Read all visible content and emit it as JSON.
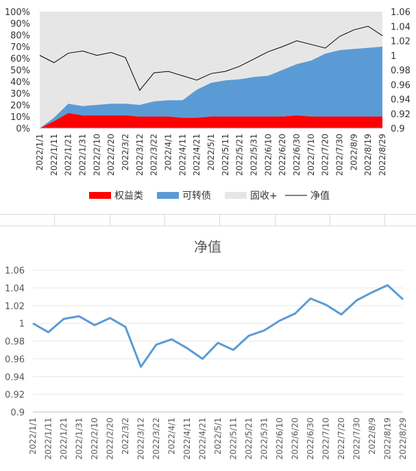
{
  "chart_data": [
    {
      "type": "area",
      "x_dates": [
        "2022/1/1",
        "2022/1/11",
        "2022/1/21",
        "2022/1/31",
        "2022/2/10",
        "2022/2/20",
        "2022/3/2",
        "2022/3/12",
        "2022/3/22",
        "2022/4/1",
        "2022/4/11",
        "2022/4/21",
        "2022/5/1",
        "2022/5/11",
        "2022/5/21",
        "2022/5/31",
        "2022/6/10",
        "2022/6/20",
        "2022/6/30",
        "2022/7/10",
        "2022/7/20",
        "2022/7/30",
        "2022/8/9",
        "2022/8/19",
        "2022/8/29"
      ],
      "y_left_ticks": [
        "0%",
        "10%",
        "20%",
        "30%",
        "40%",
        "50%",
        "60%",
        "70%",
        "80%",
        "90%",
        "100%"
      ],
      "y_right_ticks": [
        "0.9",
        "0.92",
        "0.94",
        "0.96",
        "0.98",
        "1",
        "1.02",
        "1.04",
        "1.06"
      ],
      "ylim_left": [
        0,
        100
      ],
      "ylim_right": [
        0.9,
        1.06
      ],
      "legend": [
        "权益类",
        "可转债",
        "固收+",
        "净值"
      ],
      "legend_position": "bottom",
      "colors": {
        "equity": "#ff0000",
        "convertible": "#5b9bd5",
        "fixed": "#e7e6e6",
        "nav": "#000000"
      },
      "series": [
        {
          "name": "权益类",
          "axis": "left",
          "values": [
            0,
            6,
            13,
            11,
            11,
            11,
            11,
            10,
            10,
            10,
            9,
            9,
            10,
            10,
            10,
            10,
            10,
            10,
            11,
            10,
            10,
            10,
            10,
            10,
            10
          ]
        },
        {
          "name": "可转债",
          "axis": "left",
          "values": [
            0,
            3,
            8,
            8,
            9,
            10,
            10,
            10,
            13,
            14,
            15,
            24,
            29,
            31,
            32,
            34,
            35,
            40,
            44,
            48,
            54,
            57,
            58,
            59,
            60
          ]
        },
        {
          "name": "固收+",
          "axis": "left",
          "values": [
            100,
            91,
            79,
            81,
            80,
            79,
            79,
            80,
            77,
            76,
            76,
            67,
            61,
            59,
            58,
            56,
            55,
            50,
            45,
            42,
            36,
            33,
            32,
            31,
            30
          ]
        },
        {
          "name": "净值",
          "axis": "right",
          "values": [
            1.0,
            0.99,
            1.003,
            1.006,
            1.0,
            1.004,
            0.997,
            0.952,
            0.976,
            0.978,
            0.972,
            0.966,
            0.975,
            0.978,
            0.985,
            0.995,
            1.005,
            1.012,
            1.02,
            1.015,
            1.01,
            1.026,
            1.035,
            1.04,
            1.027
          ]
        }
      ]
    },
    {
      "type": "line",
      "title": "净值",
      "x_dates": [
        "2022/1/1",
        "2022/1/11",
        "2022/1/21",
        "2022/1/31",
        "2022/2/10",
        "2022/2/20",
        "2022/3/2",
        "2022/3/12",
        "2022/3/22",
        "2022/4/1",
        "2022/4/11",
        "2022/4/21",
        "2022/5/1",
        "2022/5/11",
        "2022/5/21",
        "2022/5/31",
        "2022/6/10",
        "2022/6/20",
        "2022/6/30",
        "2022/7/10",
        "2022/7/20",
        "2022/7/30",
        "2022/8/9",
        "2022/8/19",
        "2022/8/29"
      ],
      "y_ticks": [
        "0.9",
        "0.92",
        "0.94",
        "0.96",
        "0.98",
        "1",
        "1.02",
        "1.04",
        "1.06"
      ],
      "ylim": [
        0.9,
        1.06
      ],
      "color": "#5b9bd5",
      "values": [
        1.0,
        0.99,
        1.005,
        1.008,
        0.998,
        1.006,
        0.996,
        0.951,
        0.976,
        0.982,
        0.972,
        0.96,
        0.978,
        0.97,
        0.986,
        0.992,
        1.003,
        1.011,
        1.028,
        1.021,
        1.01,
        1.026,
        1.035,
        1.043,
        1.027
      ]
    }
  ]
}
